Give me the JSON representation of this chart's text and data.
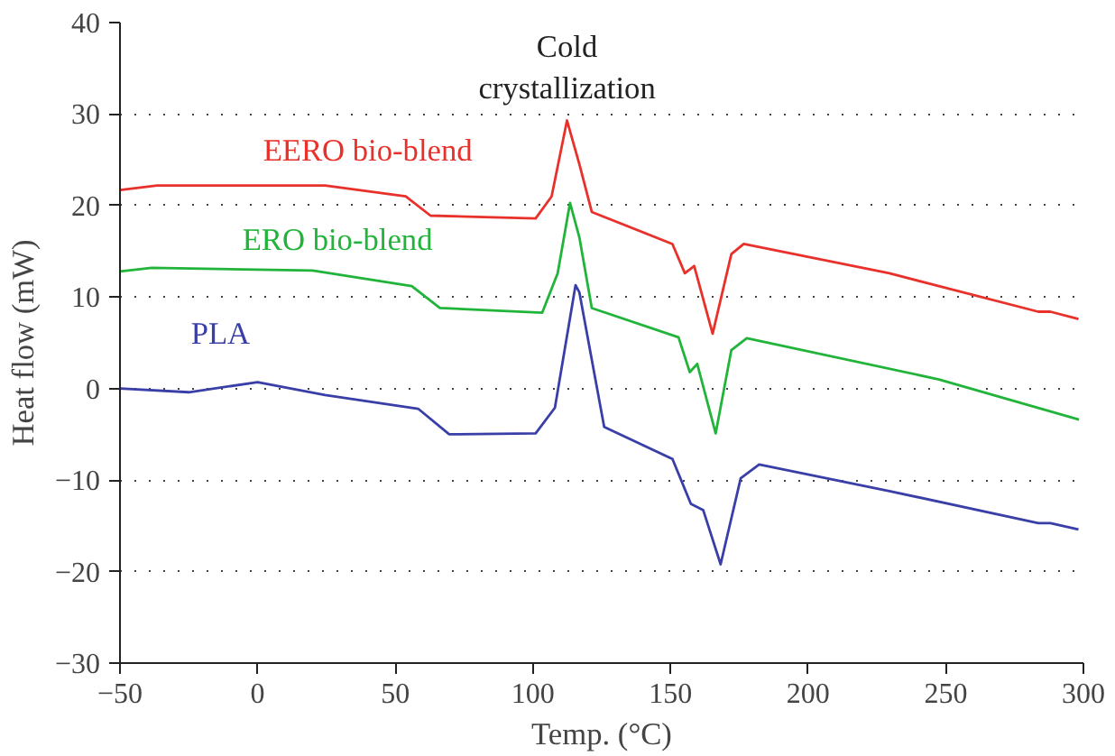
{
  "chart_data": {
    "type": "line",
    "xlabel": "Temp. (°C)",
    "ylabel": "Heat flow (mW)",
    "xlim": [
      -50,
      300
    ],
    "ylim": [
      -30,
      40
    ],
    "xticks": [
      -50,
      0,
      50,
      100,
      150,
      200,
      250,
      300
    ],
    "yticks": [
      -30,
      -20,
      -10,
      0,
      10,
      20,
      30,
      40
    ],
    "grid": "y",
    "marker": "none",
    "line_style": "solid",
    "annotations": [
      "Cold\ncrystallization"
    ],
    "series": [
      {
        "name": "EERO bio-blend",
        "color": "#e8312a",
        "x": [
          -50,
          -36.5,
          24.5,
          53.8,
          62.8,
          101,
          106.8,
          112.4,
          116.9,
          121.4,
          150.7,
          155.2,
          158.6,
          165.3,
          172.1,
          176.6,
          229.5,
          283.6,
          288,
          298.2
        ],
        "values": [
          21.7,
          22.2,
          22.2,
          21.0,
          18.9,
          18.6,
          21.0,
          29.3,
          24.5,
          19.3,
          15.8,
          12.6,
          13.4,
          6.0,
          14.7,
          15.8,
          12.6,
          8.4,
          8.4,
          7.6
        ]
      },
      {
        "name": "ERO bio-blend",
        "color": "#22b43a",
        "x": [
          -50,
          -38.5,
          20,
          56,
          66.2,
          103.4,
          109,
          113.5,
          116.9,
          121.4,
          152.9,
          157,
          159.7,
          166.4,
          172.1,
          177.7,
          247.5,
          298.4
        ],
        "values": [
          12.8,
          13.2,
          12.9,
          11.2,
          8.8,
          8.3,
          12.6,
          20.3,
          16.5,
          8.8,
          5.6,
          1.8,
          2.7,
          -4.9,
          4.2,
          5.5,
          1.0,
          -3.4
        ]
      },
      {
        "name": "PLA",
        "color": "#3a3fa8",
        "x": [
          -50,
          -25,
          0,
          24.5,
          58.3,
          69.6,
          101,
          108,
          115.5,
          116.9,
          125.9,
          150.7,
          157.4,
          161.9,
          168.2,
          175.5,
          182.2,
          229.5,
          283.6,
          288,
          298.2
        ],
        "values": [
          0,
          -0.4,
          0.7,
          -0.7,
          -2.2,
          -5.0,
          -4.9,
          -2.1,
          11.3,
          10.5,
          -4.2,
          -7.7,
          -12.6,
          -13.3,
          -19.2,
          -9.8,
          -8.3,
          -11.2,
          -14.7,
          -14.7,
          -15.4
        ]
      }
    ]
  }
}
